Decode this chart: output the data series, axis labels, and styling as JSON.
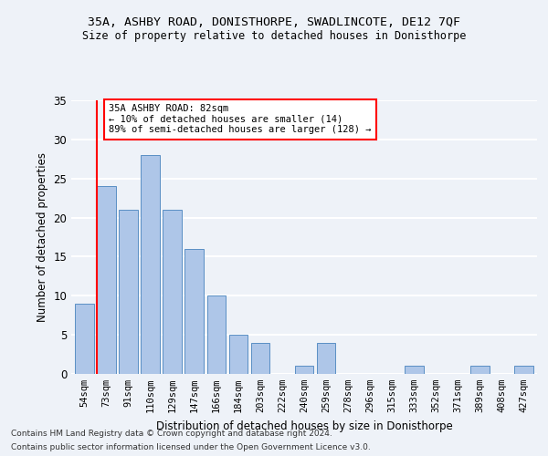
{
  "title_line1": "35A, ASHBY ROAD, DONISTHORPE, SWADLINCOTE, DE12 7QF",
  "title_line2": "Size of property relative to detached houses in Donisthorpe",
  "xlabel": "Distribution of detached houses by size in Donisthorpe",
  "ylabel": "Number of detached properties",
  "categories": [
    "54sqm",
    "73sqm",
    "91sqm",
    "110sqm",
    "129sqm",
    "147sqm",
    "166sqm",
    "184sqm",
    "203sqm",
    "222sqm",
    "240sqm",
    "259sqm",
    "278sqm",
    "296sqm",
    "315sqm",
    "333sqm",
    "352sqm",
    "371sqm",
    "389sqm",
    "408sqm",
    "427sqm"
  ],
  "values": [
    9,
    24,
    21,
    28,
    21,
    16,
    10,
    5,
    4,
    0,
    1,
    4,
    0,
    0,
    0,
    1,
    0,
    0,
    1,
    0,
    1
  ],
  "bar_color": "#aec6e8",
  "bar_edge_color": "#5a8fc4",
  "annotation_text_line1": "35A ASHBY ROAD: 82sqm",
  "annotation_text_line2": "← 10% of detached houses are smaller (14)",
  "annotation_text_line3": "89% of semi-detached houses are larger (128) →",
  "annotation_box_color": "white",
  "annotation_box_edge_color": "red",
  "vline_color": "red",
  "vline_x_index": 1,
  "ylim": [
    0,
    35
  ],
  "yticks": [
    0,
    5,
    10,
    15,
    20,
    25,
    30,
    35
  ],
  "background_color": "#eef2f8",
  "grid_color": "white",
  "footnote1": "Contains HM Land Registry data © Crown copyright and database right 2024.",
  "footnote2": "Contains public sector information licensed under the Open Government Licence v3.0."
}
